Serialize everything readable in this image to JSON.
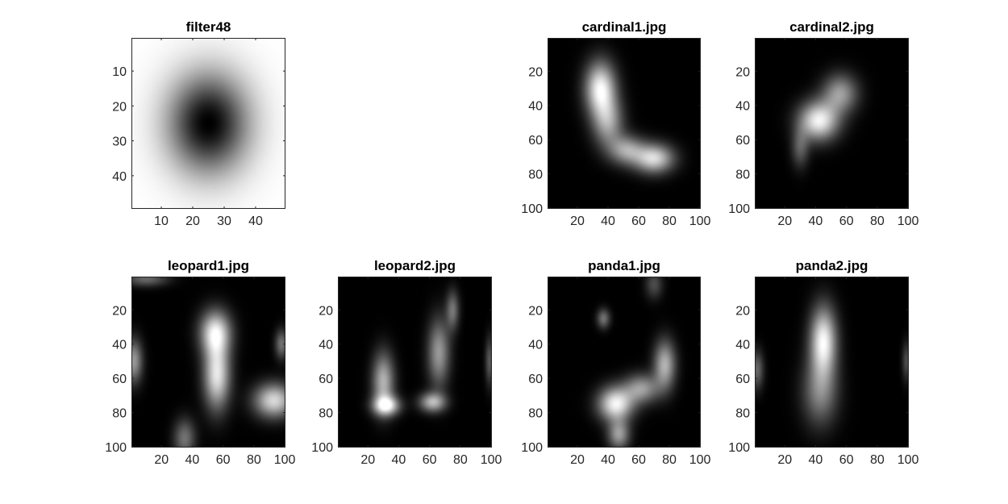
{
  "figure": {
    "background": "#ffffff"
  },
  "chart_data": [
    {
      "type": "heatmap",
      "title": "filter48",
      "colormap": "gray",
      "xlim": [
        0.5,
        49.5
      ],
      "ylim": [
        0.5,
        49.5
      ],
      "xticks": [
        "10",
        "20",
        "30",
        "40"
      ],
      "xtick_values": [
        10,
        20,
        30,
        40
      ],
      "yticks": [
        "10",
        "20",
        "30",
        "40"
      ],
      "ytick_values": [
        10,
        20,
        30,
        40
      ],
      "y_reversed": true,
      "blobs": [
        {
          "x": 25,
          "y": 25,
          "sx": 9,
          "sy": 10,
          "a": -1.0
        }
      ],
      "base": 1.0,
      "render": "filter"
    },
    {
      "type": "heatmap",
      "title": "cardinal1.jpg",
      "colormap": "gray",
      "xlim": [
        0.5,
        100.5
      ],
      "ylim": [
        0.5,
        100.5
      ],
      "xticks": [
        "20",
        "40",
        "60",
        "80",
        "100"
      ],
      "xtick_values": [
        20,
        40,
        60,
        80,
        100
      ],
      "yticks": [
        "20",
        "40",
        "60",
        "80",
        "100"
      ],
      "ytick_values": [
        20,
        40,
        60,
        80,
        100
      ],
      "y_reversed": true,
      "blobs": [
        {
          "x": 35,
          "y": 30,
          "sx": 7,
          "sy": 11,
          "a": 0.95
        },
        {
          "x": 40,
          "y": 50,
          "sx": 7,
          "sy": 10,
          "a": 0.6
        },
        {
          "x": 52,
          "y": 66,
          "sx": 8,
          "sy": 6,
          "a": 0.6
        },
        {
          "x": 70,
          "y": 71,
          "sx": 9,
          "sy": 6,
          "a": 0.85
        }
      ]
    },
    {
      "type": "heatmap",
      "title": "cardinal2.jpg",
      "colormap": "gray",
      "xlim": [
        0.5,
        100.5
      ],
      "ylim": [
        0.5,
        100.5
      ],
      "xticks": [
        "20",
        "40",
        "60",
        "80",
        "100"
      ],
      "xtick_values": [
        20,
        40,
        60,
        80,
        100
      ],
      "yticks": [
        "20",
        "40",
        "60",
        "80",
        "100"
      ],
      "ytick_values": [
        20,
        40,
        60,
        80,
        100
      ],
      "y_reversed": true,
      "blobs": [
        {
          "x": 42,
          "y": 49,
          "sx": 9,
          "sy": 8,
          "a": 0.95
        },
        {
          "x": 56,
          "y": 33,
          "sx": 8,
          "sy": 8,
          "a": 0.6
        },
        {
          "x": 30,
          "y": 65,
          "sx": 4,
          "sy": 8,
          "a": 0.35
        }
      ]
    },
    {
      "type": "heatmap",
      "title": "leopard1.jpg",
      "colormap": "gray",
      "xlim": [
        0.5,
        100.5
      ],
      "ylim": [
        0.5,
        100.5
      ],
      "xticks": [
        "20",
        "40",
        "60",
        "80",
        "100"
      ],
      "xtick_values": [
        20,
        40,
        60,
        80,
        100
      ],
      "yticks": [
        "20",
        "40",
        "60",
        "80",
        "100"
      ],
      "ytick_values": [
        20,
        40,
        60,
        80,
        100
      ],
      "y_reversed": true,
      "blobs": [
        {
          "x": 55,
          "y": 33,
          "sx": 7,
          "sy": 9,
          "a": 0.85
        },
        {
          "x": 56,
          "y": 58,
          "sx": 6,
          "sy": 14,
          "a": 0.9
        },
        {
          "x": 93,
          "y": 73,
          "sx": 9,
          "sy": 7,
          "a": 0.85
        },
        {
          "x": 2,
          "y": 50,
          "sx": 4,
          "sy": 9,
          "a": 0.6
        },
        {
          "x": 98,
          "y": 40,
          "sx": 3,
          "sy": 6,
          "a": 0.45
        },
        {
          "x": 35,
          "y": 95,
          "sx": 5,
          "sy": 8,
          "a": 0.45
        },
        {
          "x": 10,
          "y": 2,
          "sx": 10,
          "sy": 3,
          "a": 0.4
        }
      ]
    },
    {
      "type": "heatmap",
      "title": "leopard2.jpg",
      "colormap": "gray",
      "xlim": [
        0.5,
        100.5
      ],
      "ylim": [
        0.5,
        100.5
      ],
      "xticks": [
        "20",
        "40",
        "60",
        "80",
        "100"
      ],
      "xtick_values": [
        20,
        40,
        60,
        80,
        100
      ],
      "yticks": [
        "20",
        "40",
        "60",
        "80",
        "100"
      ],
      "ytick_values": [
        20,
        40,
        60,
        80,
        100
      ],
      "y_reversed": true,
      "blobs": [
        {
          "x": 30,
          "y": 62,
          "sx": 5,
          "sy": 12,
          "a": 0.7
        },
        {
          "x": 32,
          "y": 76,
          "sx": 6,
          "sy": 4,
          "a": 0.85
        },
        {
          "x": 66,
          "y": 45,
          "sx": 5,
          "sy": 14,
          "a": 0.6
        },
        {
          "x": 62,
          "y": 74,
          "sx": 6,
          "sy": 4,
          "a": 0.7
        },
        {
          "x": 75,
          "y": 20,
          "sx": 3,
          "sy": 8,
          "a": 0.45
        },
        {
          "x": 99,
          "y": 50,
          "sx": 2,
          "sy": 10,
          "a": 0.35
        }
      ]
    },
    {
      "type": "heatmap",
      "title": "panda1.jpg",
      "colormap": "gray",
      "xlim": [
        0.5,
        100.5
      ],
      "ylim": [
        0.5,
        100.5
      ],
      "xticks": [
        "20",
        "40",
        "60",
        "80",
        "100"
      ],
      "xtick_values": [
        20,
        40,
        60,
        80,
        100
      ],
      "yticks": [
        "20",
        "40",
        "60",
        "80",
        "100"
      ],
      "ytick_values": [
        20,
        40,
        60,
        80,
        100
      ],
      "y_reversed": true,
      "blobs": [
        {
          "x": 45,
          "y": 75,
          "sx": 8,
          "sy": 7,
          "a": 0.95
        },
        {
          "x": 62,
          "y": 66,
          "sx": 8,
          "sy": 6,
          "a": 0.6
        },
        {
          "x": 77,
          "y": 52,
          "sx": 5,
          "sy": 10,
          "a": 0.7
        },
        {
          "x": 37,
          "y": 25,
          "sx": 3,
          "sy": 4,
          "a": 0.45
        },
        {
          "x": 70,
          "y": 5,
          "sx": 4,
          "sy": 6,
          "a": 0.3
        },
        {
          "x": 47,
          "y": 93,
          "sx": 5,
          "sy": 6,
          "a": 0.6
        }
      ]
    },
    {
      "type": "heatmap",
      "title": "panda2.jpg",
      "colormap": "gray",
      "xlim": [
        0.5,
        100.5
      ],
      "ylim": [
        0.5,
        100.5
      ],
      "xticks": [
        "20",
        "40",
        "60",
        "80",
        "100"
      ],
      "xtick_values": [
        20,
        40,
        60,
        80,
        100
      ],
      "yticks": [
        "20",
        "40",
        "60",
        "80",
        "100"
      ],
      "ytick_values": [
        20,
        40,
        60,
        80,
        100
      ],
      "y_reversed": true,
      "blobs": [
        {
          "x": 45,
          "y": 38,
          "sx": 6,
          "sy": 14,
          "a": 0.95
        },
        {
          "x": 43,
          "y": 68,
          "sx": 8,
          "sy": 14,
          "a": 0.5
        },
        {
          "x": 2,
          "y": 55,
          "sx": 3,
          "sy": 8,
          "a": 0.4
        },
        {
          "x": 99,
          "y": 50,
          "sx": 2,
          "sy": 8,
          "a": 0.3
        }
      ]
    }
  ]
}
